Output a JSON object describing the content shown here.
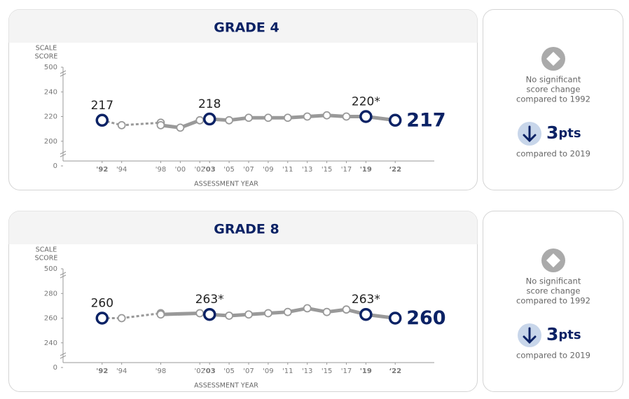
{
  "chart_data": [
    {
      "type": "line",
      "title": "GRADE 4",
      "ylabel": [
        "SCALE",
        "SCORE"
      ],
      "xlabel": "ASSESSMENT YEAR",
      "ylim": [
        0,
        500
      ],
      "yticks": [
        0,
        200,
        220,
        240,
        500
      ],
      "broken_axis": true,
      "xlim": [
        1988,
        2026
      ],
      "xticks": [
        {
          "value": 1992,
          "label": "'92"
        },
        {
          "value": 1994,
          "label": "'94"
        },
        {
          "value": 1998,
          "label": "'98"
        },
        {
          "value": 2000,
          "label": "'00"
        },
        {
          "value": 2002,
          "label": "'02"
        },
        {
          "value": 2003,
          "label": "'03"
        },
        {
          "value": 2005,
          "label": "'05"
        },
        {
          "value": 2007,
          "label": "'07"
        },
        {
          "value": 2009,
          "label": "'09"
        },
        {
          "value": 2011,
          "label": "'11"
        },
        {
          "value": 2013,
          "label": "'13"
        },
        {
          "value": 2015,
          "label": "'15"
        },
        {
          "value": 2017,
          "label": "'17"
        },
        {
          "value": 2019,
          "label": "'19"
        },
        {
          "value": 2022,
          "label": "‘22"
        }
      ],
      "series": [
        {
          "color": "#999999",
          "dashed": true,
          "x": [
            1992,
            1994,
            1998
          ],
          "values": [
            217,
            213,
            215
          ],
          "value_labels": [
            "217",
            null,
            null
          ]
        },
        {
          "color": "#999999",
          "dashed": false,
          "x": [
            1998,
            2000,
            2002,
            2003,
            2005,
            2007,
            2009,
            2011,
            2013,
            2015,
            2017,
            2019,
            2022
          ],
          "values": [
            213,
            211,
            217,
            218,
            217,
            219,
            219,
            219,
            220,
            221,
            220,
            220,
            217
          ],
          "value_labels": [
            null,
            null,
            null,
            "218",
            null,
            null,
            null,
            null,
            null,
            null,
            null,
            "220*",
            "217"
          ]
        }
      ],
      "highlight_color": "#0b2265",
      "summary": {
        "text": [
          "No significant",
          "score change",
          "compared to 1992"
        ],
        "change": 3,
        "unit": "pts",
        "note": "compared to 2019"
      }
    },
    {
      "type": "line",
      "title": "GRADE 8",
      "ylabel": [
        "SCALE",
        "SCORE"
      ],
      "xlabel": "ASSESSMENT YEAR",
      "ylim": [
        0,
        500
      ],
      "yticks": [
        0,
        240,
        260,
        280,
        500
      ],
      "broken_axis": true,
      "xlim": [
        1988,
        2026
      ],
      "xticks": [
        {
          "value": 1992,
          "label": "'92"
        },
        {
          "value": 1994,
          "label": "'94"
        },
        {
          "value": 1998,
          "label": "'98"
        },
        {
          "value": 2002,
          "label": "'02"
        },
        {
          "value": 2003,
          "label": "'03"
        },
        {
          "value": 2005,
          "label": "'05"
        },
        {
          "value": 2007,
          "label": "'07"
        },
        {
          "value": 2009,
          "label": "'09"
        },
        {
          "value": 2011,
          "label": "'11"
        },
        {
          "value": 2013,
          "label": "'13"
        },
        {
          "value": 2015,
          "label": "'15"
        },
        {
          "value": 2017,
          "label": "'17"
        },
        {
          "value": 2019,
          "label": "'19"
        },
        {
          "value": 2022,
          "label": "‘22"
        }
      ],
      "series": [
        {
          "color": "#999999",
          "dashed": true,
          "x": [
            1992,
            1994,
            1998
          ],
          "values": [
            260,
            260,
            264
          ],
          "value_labels": [
            "260",
            null,
            null
          ]
        },
        {
          "color": "#999999",
          "dashed": false,
          "x": [
            1998,
            2002,
            2003,
            2005,
            2007,
            2009,
            2011,
            2013,
            2015,
            2017,
            2019,
            2022
          ],
          "values": [
            263,
            264,
            263,
            262,
            263,
            264,
            265,
            268,
            265,
            267,
            263,
            260
          ],
          "value_labels": [
            null,
            null,
            "263*",
            null,
            null,
            null,
            null,
            null,
            null,
            null,
            "263*",
            "260"
          ]
        }
      ],
      "highlight_color": "#0b2265",
      "summary": {
        "text": [
          "No significant",
          "score change",
          "compared to 1992"
        ],
        "change": 3,
        "unit": "pts",
        "note": "compared to 2019"
      }
    }
  ]
}
